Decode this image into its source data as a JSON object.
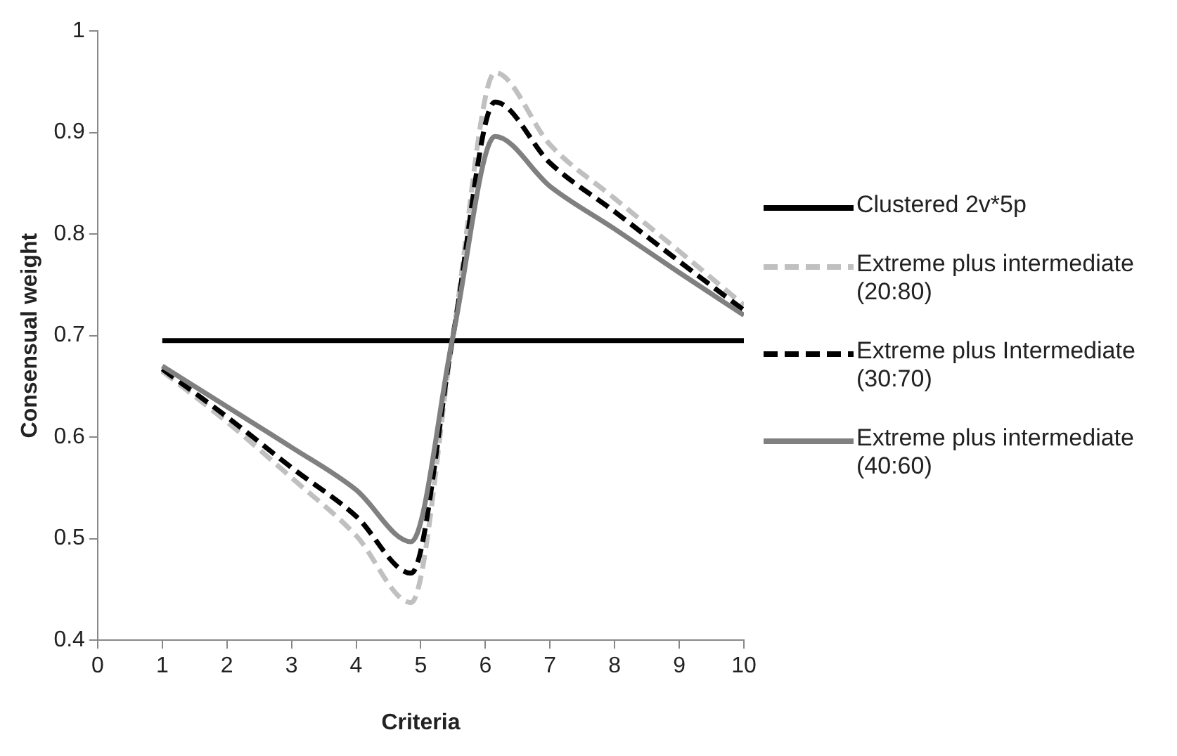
{
  "chart_data": {
    "type": "line",
    "xlabel": "Criteria",
    "ylabel": "Consensual weight",
    "xlim": [
      0,
      10
    ],
    "xticks": [
      0,
      1,
      2,
      3,
      4,
      5,
      6,
      7,
      8,
      9,
      10
    ],
    "ylim": [
      0.4,
      1
    ],
    "yticks": [
      0.4,
      0.5,
      0.6,
      0.7,
      0.8,
      0.9,
      1
    ],
    "grid": false,
    "legend": "right",
    "marker": "none",
    "series": [
      {
        "name": "Clustered 2v*5p",
        "color": "#000000",
        "line_style": "solid",
        "x": [
          1,
          2,
          3,
          4,
          5,
          6,
          7,
          8,
          9,
          10
        ],
        "values": [
          0.695,
          0.695,
          0.695,
          0.695,
          0.695,
          0.695,
          0.695,
          0.695,
          0.695,
          0.695
        ]
      },
      {
        "name": "Extreme plus intermediate (20:80)",
        "color": "#c0c0c0",
        "line_style": "dashed",
        "x": [
          1,
          2,
          3,
          4,
          4.85,
          5.5,
          6.15,
          7,
          8,
          9,
          10
        ],
        "values": [
          0.665,
          0.615,
          0.56,
          0.503,
          0.437,
          0.7,
          0.959,
          0.888,
          0.835,
          0.783,
          0.73
        ]
      },
      {
        "name": "Extreme plus Intermediate (30:70)",
        "color": "#000000",
        "line_style": "dashed",
        "x": [
          1,
          2,
          3,
          4,
          4.85,
          5.5,
          6.15,
          7,
          8,
          9,
          10
        ],
        "values": [
          0.667,
          0.62,
          0.57,
          0.522,
          0.466,
          0.7,
          0.93,
          0.87,
          0.822,
          0.773,
          0.725
        ]
      },
      {
        "name": "Extreme plus intermediate (40:60)",
        "color": "#808080",
        "line_style": "solid",
        "x": [
          1,
          2,
          3,
          4,
          4.85,
          5.5,
          6.15,
          7,
          8,
          9,
          10
        ],
        "values": [
          0.67,
          0.63,
          0.59,
          0.548,
          0.497,
          0.7,
          0.896,
          0.847,
          0.805,
          0.762,
          0.72
        ]
      }
    ]
  }
}
